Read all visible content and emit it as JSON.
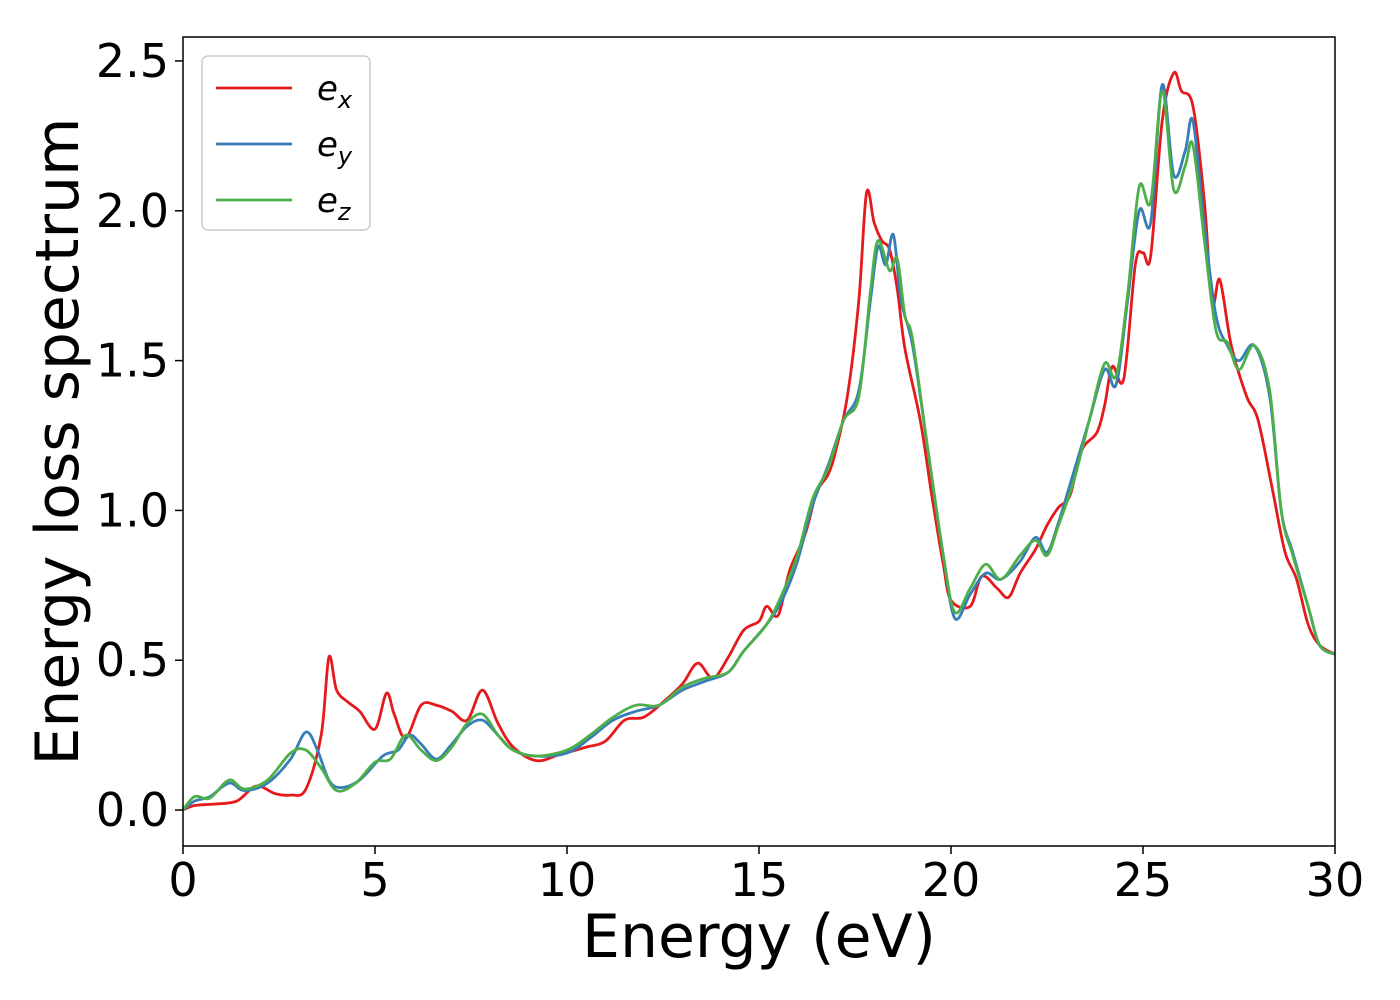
{
  "chart_data": {
    "type": "line",
    "title": "",
    "xlabel": "Energy (eV)",
    "ylabel": "Energy loss spectrum",
    "xlim": [
      0,
      30
    ],
    "ylim": [
      -0.12,
      2.58
    ],
    "xticks": [
      0,
      5,
      10,
      15,
      20,
      25,
      30
    ],
    "xtick_labels": [
      "0",
      "5",
      "10",
      "15",
      "20",
      "25",
      "30"
    ],
    "yticks": [
      0.0,
      0.5,
      1.0,
      1.5,
      2.0,
      2.5
    ],
    "ytick_labels": [
      "0.0",
      "0.5",
      "1.0",
      "1.5",
      "2.0",
      "2.5"
    ],
    "grid": false,
    "legend_position": "top-left",
    "series": [
      {
        "name": "e_x",
        "label_main": "e",
        "label_sub": "x",
        "color": "#e41a1c",
        "points": [
          [
            0,
            0
          ],
          [
            0.3,
            0.015
          ],
          [
            0.8,
            0.02
          ],
          [
            1.4,
            0.03
          ],
          [
            1.9,
            0.08
          ],
          [
            2.4,
            0.055
          ],
          [
            2.8,
            0.05
          ],
          [
            3.2,
            0.07
          ],
          [
            3.6,
            0.25
          ],
          [
            3.8,
            0.51
          ],
          [
            4.0,
            0.4
          ],
          [
            4.3,
            0.36
          ],
          [
            4.6,
            0.33
          ],
          [
            5.0,
            0.27
          ],
          [
            5.3,
            0.39
          ],
          [
            5.5,
            0.32
          ],
          [
            5.8,
            0.24
          ],
          [
            6.2,
            0.35
          ],
          [
            6.6,
            0.35
          ],
          [
            7.0,
            0.33
          ],
          [
            7.4,
            0.3
          ],
          [
            7.8,
            0.4
          ],
          [
            8.2,
            0.29
          ],
          [
            8.6,
            0.21
          ],
          [
            9.2,
            0.165
          ],
          [
            9.8,
            0.185
          ],
          [
            10.5,
            0.21
          ],
          [
            11.0,
            0.23
          ],
          [
            11.5,
            0.3
          ],
          [
            12.0,
            0.31
          ],
          [
            12.5,
            0.36
          ],
          [
            13.0,
            0.42
          ],
          [
            13.4,
            0.49
          ],
          [
            13.8,
            0.44
          ],
          [
            14.2,
            0.51
          ],
          [
            14.6,
            0.6
          ],
          [
            15.0,
            0.63
          ],
          [
            15.2,
            0.68
          ],
          [
            15.5,
            0.65
          ],
          [
            15.8,
            0.8
          ],
          [
            16.2,
            0.92
          ],
          [
            16.5,
            1.06
          ],
          [
            16.8,
            1.12
          ],
          [
            17.0,
            1.2
          ],
          [
            17.3,
            1.38
          ],
          [
            17.6,
            1.7
          ],
          [
            17.8,
            2.06
          ],
          [
            18.0,
            1.96
          ],
          [
            18.2,
            1.9
          ],
          [
            18.4,
            1.87
          ],
          [
            18.6,
            1.74
          ],
          [
            18.8,
            1.54
          ],
          [
            19.2,
            1.3
          ],
          [
            19.5,
            1.05
          ],
          [
            19.8,
            0.82
          ],
          [
            20.0,
            0.7
          ],
          [
            20.5,
            0.68
          ],
          [
            20.8,
            0.78
          ],
          [
            21.2,
            0.74
          ],
          [
            21.5,
            0.71
          ],
          [
            21.8,
            0.79
          ],
          [
            22.2,
            0.87
          ],
          [
            22.5,
            0.95
          ],
          [
            22.8,
            1.01
          ],
          [
            23.1,
            1.05
          ],
          [
            23.4,
            1.2
          ],
          [
            23.8,
            1.26
          ],
          [
            24.0,
            1.35
          ],
          [
            24.2,
            1.48
          ],
          [
            24.5,
            1.44
          ],
          [
            24.8,
            1.82
          ],
          [
            25.0,
            1.86
          ],
          [
            25.2,
            1.85
          ],
          [
            25.5,
            2.3
          ],
          [
            25.8,
            2.46
          ],
          [
            26.0,
            2.4
          ],
          [
            26.3,
            2.35
          ],
          [
            26.6,
            2.03
          ],
          [
            26.8,
            1.69
          ],
          [
            27.0,
            1.77
          ],
          [
            27.3,
            1.55
          ],
          [
            27.7,
            1.38
          ],
          [
            28.0,
            1.3
          ],
          [
            28.4,
            1.05
          ],
          [
            28.7,
            0.86
          ],
          [
            29.0,
            0.77
          ],
          [
            29.3,
            0.62
          ],
          [
            29.6,
            0.55
          ],
          [
            30.0,
            0.52
          ]
        ]
      },
      {
        "name": "e_y",
        "label_main": "e",
        "label_sub": "y",
        "color": "#377eb8",
        "points": [
          [
            0,
            0
          ],
          [
            0.3,
            0.03
          ],
          [
            0.7,
            0.045
          ],
          [
            1.2,
            0.09
          ],
          [
            1.6,
            0.065
          ],
          [
            2.2,
            0.09
          ],
          [
            2.8,
            0.17
          ],
          [
            3.2,
            0.26
          ],
          [
            3.5,
            0.2
          ],
          [
            3.8,
            0.1
          ],
          [
            4.1,
            0.075
          ],
          [
            4.6,
            0.1
          ],
          [
            5.2,
            0.18
          ],
          [
            5.6,
            0.2
          ],
          [
            5.9,
            0.25
          ],
          [
            6.2,
            0.22
          ],
          [
            6.6,
            0.17
          ],
          [
            7.0,
            0.22
          ],
          [
            7.4,
            0.28
          ],
          [
            7.8,
            0.3
          ],
          [
            8.2,
            0.25
          ],
          [
            8.6,
            0.2
          ],
          [
            9.2,
            0.18
          ],
          [
            10.0,
            0.19
          ],
          [
            10.6,
            0.24
          ],
          [
            11.2,
            0.3
          ],
          [
            11.8,
            0.33
          ],
          [
            12.4,
            0.35
          ],
          [
            13.0,
            0.4
          ],
          [
            13.6,
            0.43
          ],
          [
            14.2,
            0.46
          ],
          [
            14.6,
            0.53
          ],
          [
            15.2,
            0.62
          ],
          [
            15.6,
            0.7
          ],
          [
            16.0,
            0.83
          ],
          [
            16.4,
            1.02
          ],
          [
            16.8,
            1.15
          ],
          [
            17.2,
            1.3
          ],
          [
            17.6,
            1.4
          ],
          [
            17.9,
            1.7
          ],
          [
            18.1,
            1.88
          ],
          [
            18.3,
            1.82
          ],
          [
            18.5,
            1.92
          ],
          [
            18.7,
            1.7
          ],
          [
            19.0,
            1.55
          ],
          [
            19.4,
            1.2
          ],
          [
            19.8,
            0.85
          ],
          [
            20.1,
            0.64
          ],
          [
            20.5,
            0.72
          ],
          [
            20.9,
            0.79
          ],
          [
            21.3,
            0.77
          ],
          [
            21.8,
            0.83
          ],
          [
            22.2,
            0.91
          ],
          [
            22.5,
            0.86
          ],
          [
            22.8,
            0.96
          ],
          [
            23.2,
            1.13
          ],
          [
            23.6,
            1.3
          ],
          [
            24.0,
            1.47
          ],
          [
            24.3,
            1.42
          ],
          [
            24.6,
            1.7
          ],
          [
            24.9,
            2.0
          ],
          [
            25.2,
            1.96
          ],
          [
            25.5,
            2.42
          ],
          [
            25.8,
            2.12
          ],
          [
            26.1,
            2.2
          ],
          [
            26.3,
            2.3
          ],
          [
            26.6,
            1.95
          ],
          [
            26.9,
            1.65
          ],
          [
            27.2,
            1.55
          ],
          [
            27.5,
            1.5
          ],
          [
            27.9,
            1.55
          ],
          [
            28.3,
            1.38
          ],
          [
            28.6,
            1.0
          ],
          [
            28.9,
            0.86
          ],
          [
            29.3,
            0.68
          ],
          [
            29.6,
            0.55
          ],
          [
            30.0,
            0.52
          ]
        ]
      },
      {
        "name": "e_z",
        "label_main": "e",
        "label_sub": "z",
        "color": "#4daf4a",
        "points": [
          [
            0,
            0
          ],
          [
            0.3,
            0.045
          ],
          [
            0.7,
            0.04
          ],
          [
            1.2,
            0.1
          ],
          [
            1.6,
            0.07
          ],
          [
            2.2,
            0.1
          ],
          [
            2.8,
            0.19
          ],
          [
            3.2,
            0.2
          ],
          [
            3.6,
            0.14
          ],
          [
            4.0,
            0.065
          ],
          [
            4.5,
            0.09
          ],
          [
            5.0,
            0.16
          ],
          [
            5.4,
            0.17
          ],
          [
            5.8,
            0.25
          ],
          [
            6.2,
            0.2
          ],
          [
            6.6,
            0.165
          ],
          [
            7.0,
            0.21
          ],
          [
            7.4,
            0.29
          ],
          [
            7.8,
            0.32
          ],
          [
            8.2,
            0.25
          ],
          [
            8.6,
            0.2
          ],
          [
            9.2,
            0.18
          ],
          [
            10.0,
            0.2
          ],
          [
            10.6,
            0.25
          ],
          [
            11.2,
            0.31
          ],
          [
            11.8,
            0.35
          ],
          [
            12.4,
            0.35
          ],
          [
            13.0,
            0.41
          ],
          [
            13.6,
            0.44
          ],
          [
            14.2,
            0.46
          ],
          [
            14.6,
            0.53
          ],
          [
            15.2,
            0.62
          ],
          [
            15.6,
            0.72
          ],
          [
            16.0,
            0.85
          ],
          [
            16.4,
            1.04
          ],
          [
            16.8,
            1.14
          ],
          [
            17.2,
            1.3
          ],
          [
            17.6,
            1.38
          ],
          [
            17.9,
            1.73
          ],
          [
            18.1,
            1.9
          ],
          [
            18.4,
            1.8
          ],
          [
            18.6,
            1.84
          ],
          [
            18.8,
            1.65
          ],
          [
            19.0,
            1.57
          ],
          [
            19.4,
            1.2
          ],
          [
            19.8,
            0.85
          ],
          [
            20.1,
            0.66
          ],
          [
            20.5,
            0.74
          ],
          [
            20.9,
            0.82
          ],
          [
            21.3,
            0.77
          ],
          [
            21.8,
            0.85
          ],
          [
            22.2,
            0.9
          ],
          [
            22.5,
            0.85
          ],
          [
            22.8,
            0.95
          ],
          [
            23.2,
            1.1
          ],
          [
            23.6,
            1.3
          ],
          [
            24.0,
            1.49
          ],
          [
            24.3,
            1.45
          ],
          [
            24.6,
            1.72
          ],
          [
            24.9,
            2.08
          ],
          [
            25.2,
            2.03
          ],
          [
            25.5,
            2.4
          ],
          [
            25.8,
            2.07
          ],
          [
            26.1,
            2.15
          ],
          [
            26.3,
            2.22
          ],
          [
            26.6,
            1.9
          ],
          [
            26.9,
            1.6
          ],
          [
            27.2,
            1.56
          ],
          [
            27.5,
            1.47
          ],
          [
            27.9,
            1.55
          ],
          [
            28.3,
            1.4
          ],
          [
            28.6,
            1.0
          ],
          [
            28.9,
            0.85
          ],
          [
            29.3,
            0.68
          ],
          [
            29.6,
            0.55
          ],
          [
            30.0,
            0.52
          ]
        ]
      }
    ]
  }
}
